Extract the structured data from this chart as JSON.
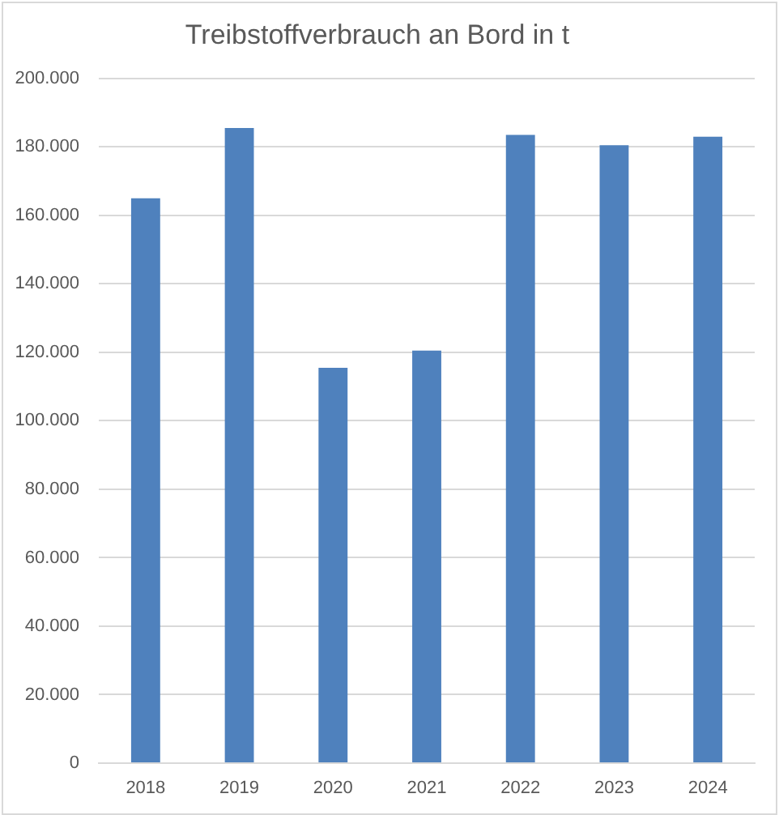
{
  "chart_data": {
    "type": "bar",
    "title": "Treibstoffverbrauch an Bord in t",
    "categories": [
      "2018",
      "2019",
      "2020",
      "2021",
      "2022",
      "2023",
      "2024"
    ],
    "values": [
      165000,
      185500,
      115500,
      120500,
      183500,
      180500,
      183000
    ],
    "color": "#4f81bd",
    "ylim": [
      0,
      200000
    ],
    "yticks": [
      0,
      {
        "value": 20000,
        "label": "20.000"
      },
      {
        "value": 40000,
        "label": "40.000"
      },
      {
        "value": 60000,
        "label": "60.000"
      },
      {
        "value": 80000,
        "label": "80.000"
      },
      {
        "value": 100000,
        "label": "100.000"
      },
      {
        "value": 120000,
        "label": "120.000"
      },
      {
        "value": 140000,
        "label": "140.000"
      },
      {
        "value": 160000,
        "label": "160.000"
      },
      {
        "value": 180000,
        "label": "180.000"
      },
      {
        "value": 200000,
        "label": "200.000"
      }
    ],
    "grid": "y"
  }
}
